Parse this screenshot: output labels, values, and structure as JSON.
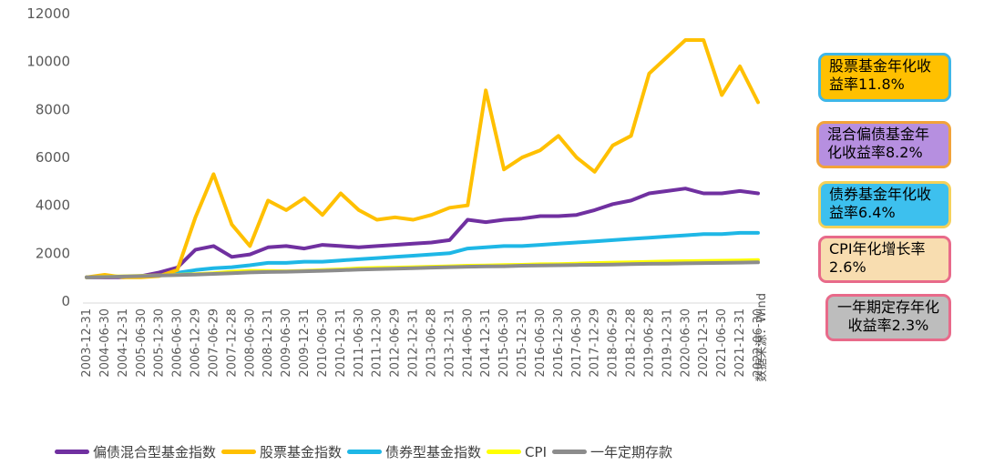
{
  "chart_data": {
    "type": "line",
    "ylim": [
      0,
      12000
    ],
    "yticks": [
      0,
      2000,
      4000,
      6000,
      8000,
      10000,
      12000
    ],
    "x_tick_labels": [
      "2003-12-31",
      "2004-06-30",
      "2004-12-31",
      "2005-06-30",
      "2005-12-30",
      "2006-06-30",
      "2006-12-29",
      "2007-06-29",
      "2007-12-28",
      "2008-06-30",
      "2008-12-31",
      "2009-06-30",
      "2009-12-31",
      "2010-06-30",
      "2010-12-31",
      "2011-06-30",
      "2011-12-30",
      "2012-06-29",
      "2012-12-31",
      "2013-06-28",
      "2013-12-31",
      "2014-06-30",
      "2014-12-31",
      "2015-06-30",
      "2015-12-31",
      "2016-06-30",
      "2016-12-30",
      "2017-06-30",
      "2017-12-29",
      "2018-06-29",
      "2018-12-28",
      "2019-06-28",
      "2019-12-31",
      "2020-06-30",
      "2020-12-31",
      "2021-06-30",
      "2021-12-31",
      "2022-06-30"
    ],
    "source_note": "数据来源：Wind",
    "series": [
      {
        "name": "偏债混合型基金指数",
        "color": "#7030A0",
        "values": [
          1000,
          990,
          1000,
          1050,
          1200,
          1400,
          2150,
          2300,
          1850,
          1950,
          2250,
          2300,
          2200,
          2350,
          2300,
          2250,
          2300,
          2350,
          2400,
          2450,
          2550,
          3400,
          3300,
          3400,
          3450,
          3550,
          3550,
          3600,
          3800,
          4050,
          4200,
          4500,
          4600,
          4700,
          4500,
          4500,
          4600,
          4500
        ]
      },
      {
        "name": "股票基金指数",
        "color": "#FFC000",
        "values": [
          1000,
          1100,
          1000,
          1000,
          1050,
          1300,
          3500,
          5300,
          3200,
          2300,
          4200,
          3800,
          4300,
          3600,
          4500,
          3800,
          3400,
          3500,
          3400,
          3600,
          3900,
          4000,
          8800,
          5500,
          6000,
          6300,
          6900,
          6000,
          5400,
          6500,
          6900,
          9500,
          10200,
          10900,
          10900,
          8600,
          9800,
          8300
        ]
      },
      {
        "name": "债券型基金指数",
        "color": "#1EB7E6",
        "values": [
          1000,
          1010,
          1020,
          1050,
          1100,
          1180,
          1300,
          1380,
          1420,
          1500,
          1600,
          1600,
          1650,
          1650,
          1700,
          1750,
          1800,
          1850,
          1900,
          1950,
          2000,
          2200,
          2250,
          2300,
          2300,
          2350,
          2400,
          2450,
          2500,
          2550,
          2600,
          2650,
          2700,
          2750,
          2800,
          2800,
          2850,
          2850
        ]
      },
      {
        "name": "CPI",
        "color": "#FFFF00",
        "values": [
          1000,
          1020,
          1040,
          1060,
          1080,
          1100,
          1130,
          1170,
          1230,
          1270,
          1260,
          1250,
          1270,
          1300,
          1330,
          1370,
          1390,
          1400,
          1420,
          1440,
          1460,
          1480,
          1490,
          1510,
          1520,
          1540,
          1550,
          1570,
          1590,
          1610,
          1620,
          1640,
          1660,
          1670,
          1680,
          1690,
          1700,
          1720
        ]
      },
      {
        "name": "一年定期存款",
        "color": "#8C8C8C",
        "values": [
          1000,
          1010,
          1030,
          1050,
          1070,
          1090,
          1110,
          1140,
          1170,
          1200,
          1220,
          1230,
          1250,
          1270,
          1290,
          1320,
          1340,
          1360,
          1380,
          1400,
          1420,
          1440,
          1450,
          1460,
          1480,
          1490,
          1500,
          1510,
          1520,
          1530,
          1550,
          1560,
          1570,
          1580,
          1590,
          1600,
          1610,
          1620
        ]
      }
    ]
  },
  "legend_items": [
    {
      "label": "偏债混合型基金指数",
      "color": "#7030A0"
    },
    {
      "label": "股票基金指数",
      "color": "#FFC000"
    },
    {
      "label": "债券型基金指数",
      "color": "#1EB7E6"
    },
    {
      "label": "CPI",
      "color": "#FFFF00"
    },
    {
      "label": "一年定期存款",
      "color": "#8C8C8C"
    }
  ],
  "callouts": [
    {
      "text": "股票基金年化收益率11.8%",
      "bg": "#FFC000",
      "border": "#3FB7E8"
    },
    {
      "text": "混合偏债基金年化收益率8.2%",
      "bg": "#B68FE0",
      "border": "#F2A33A"
    },
    {
      "text": "债券基金年化收益率6.4%",
      "bg": "#3DC0EE",
      "border": "#F5D15A"
    },
    {
      "text": "CPI年化增长率2.6%",
      "bg": "#F8DDB0",
      "border": "#E86A8A"
    },
    {
      "text": "一年期定存年化收益率2.3%",
      "bg": "#BDBDBD",
      "border": "#E86A8A"
    }
  ]
}
